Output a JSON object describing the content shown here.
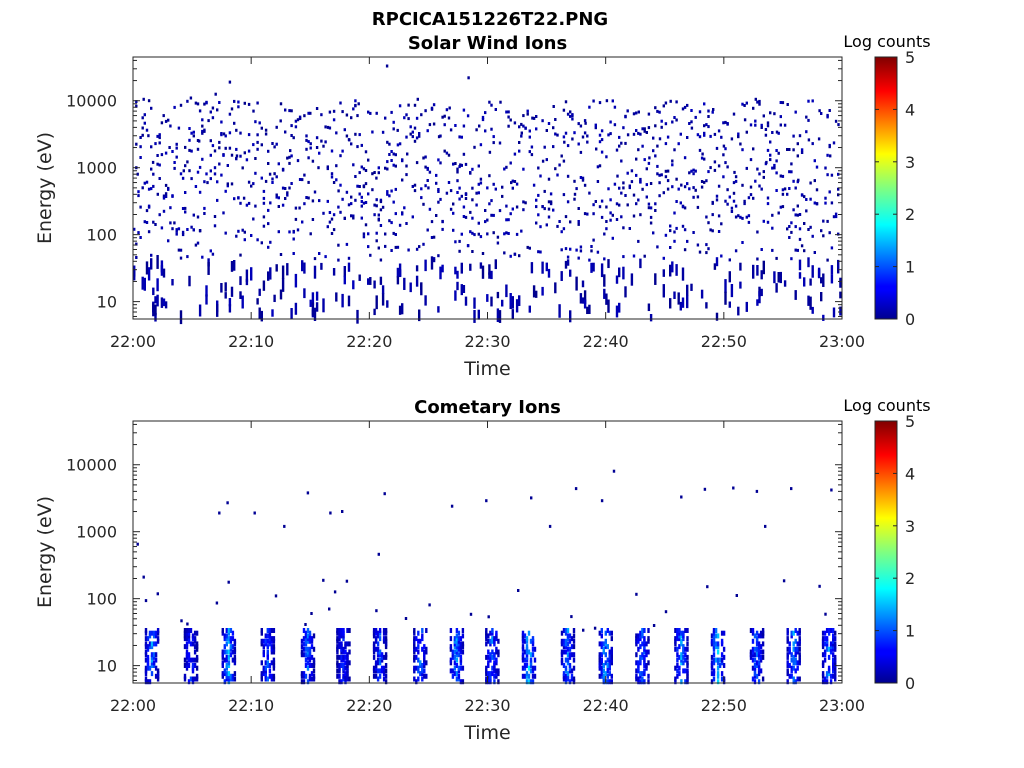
{
  "figure_title": "RPCICA151226T22.PNG",
  "chart_data": [
    {
      "type": "heatmap",
      "title": "Solar Wind Ions",
      "xlabel": "Time",
      "ylabel": "Energy (eV)",
      "x_ticks": [
        "22:00",
        "22:10",
        "22:20",
        "22:30",
        "22:40",
        "22:50",
        "23:00"
      ],
      "x_range_minutes": [
        0,
        60
      ],
      "y_scale": "log",
      "y_ticks": [
        10,
        100,
        1000,
        10000
      ],
      "y_tick_labels": [
        "10",
        "100",
        "1000",
        "10000"
      ],
      "y_range": [
        5.5,
        45000
      ],
      "colorbar": {
        "label": "Log counts",
        "range": [
          0,
          5
        ],
        "ticks": [
          "0",
          "1",
          "2",
          "3",
          "4",
          "5"
        ],
        "colormap": "jet"
      },
      "grid": false,
      "description_of_values": "Sparse single-count (log counts ≈ 0) detections scattered across 6 eV – 30 keV over the full hour; densest between ~100 eV and ~10 keV",
      "approx_points_minutes_energy_logcounts": [
        [
          0.3,
          800,
          0
        ],
        [
          0.8,
          10500,
          0
        ],
        [
          1.2,
          3000,
          0
        ],
        [
          1.6,
          1200,
          0
        ],
        [
          2.0,
          400,
          0
        ],
        [
          2.5,
          6000,
          0
        ],
        [
          3.0,
          2000,
          0
        ],
        [
          3.4,
          150,
          0
        ],
        [
          4.2,
          900,
          0
        ],
        [
          4.8,
          11000,
          0
        ],
        [
          5.5,
          2500,
          0
        ],
        [
          6.2,
          600,
          0
        ],
        [
          6.9,
          12500,
          0
        ],
        [
          7.6,
          3200,
          0
        ],
        [
          8.1,
          19000,
          0
        ],
        [
          8.7,
          1500,
          0
        ],
        [
          9.3,
          350,
          0
        ],
        [
          10.1,
          7000,
          0
        ],
        [
          10.8,
          2200,
          0
        ],
        [
          11.5,
          800,
          0
        ],
        [
          12.4,
          5000,
          0
        ],
        [
          13.2,
          1800,
          0
        ],
        [
          14.0,
          250,
          0
        ],
        [
          14.9,
          6500,
          0
        ],
        [
          15.6,
          1000,
          0
        ],
        [
          16.4,
          4000,
          0
        ],
        [
          17.3,
          450,
          0
        ],
        [
          18.2,
          2600,
          0
        ],
        [
          19.0,
          9000,
          0
        ],
        [
          19.8,
          1300,
          0
        ],
        [
          20.5,
          700,
          0
        ],
        [
          21.4,
          33000,
          0
        ],
        [
          22.3,
          3600,
          0
        ],
        [
          23.1,
          1600,
          0
        ],
        [
          24.0,
          10500,
          0
        ],
        [
          24.9,
          500,
          0
        ],
        [
          25.8,
          2900,
          0
        ],
        [
          26.7,
          7800,
          0
        ],
        [
          27.6,
          1100,
          0
        ],
        [
          28.3,
          22000,
          0
        ],
        [
          29.2,
          4200,
          0
        ],
        [
          30.1,
          1700,
          0
        ],
        [
          31.0,
          9500,
          0
        ],
        [
          31.9,
          600,
          0
        ],
        [
          32.8,
          3300,
          0
        ],
        [
          33.7,
          5500,
          0
        ],
        [
          34.6,
          1250,
          0
        ],
        [
          35.5,
          8200,
          0
        ],
        [
          36.4,
          2400,
          0
        ],
        [
          37.3,
          400,
          0
        ],
        [
          38.2,
          4600,
          0
        ],
        [
          39.1,
          1900,
          0
        ],
        [
          40.0,
          10000,
          0
        ],
        [
          40.9,
          750,
          0
        ],
        [
          41.8,
          3100,
          0
        ],
        [
          42.7,
          6800,
          0
        ],
        [
          43.6,
          1400,
          0
        ],
        [
          44.5,
          2700,
          0
        ],
        [
          45.4,
          9800,
          0
        ],
        [
          46.3,
          550,
          0
        ],
        [
          47.2,
          3900,
          0
        ],
        [
          48.1,
          1600,
          0
        ],
        [
          49.0,
          7400,
          0
        ],
        [
          49.9,
          2100,
          0
        ],
        [
          50.8,
          850,
          0
        ],
        [
          51.7,
          5200,
          0
        ],
        [
          52.6,
          10500,
          0
        ],
        [
          53.5,
          1200,
          0
        ],
        [
          54.4,
          3400,
          0
        ],
        [
          55.3,
          8800,
          0
        ],
        [
          56.2,
          650,
          0
        ],
        [
          57.1,
          2600,
          0
        ],
        [
          58.0,
          7100,
          0
        ],
        [
          58.9,
          1500,
          0
        ],
        [
          59.6,
          4400,
          0
        ]
      ]
    },
    {
      "type": "heatmap",
      "title": "Cometary Ions",
      "xlabel": "Time",
      "ylabel": "Energy (eV)",
      "x_ticks": [
        "22:00",
        "22:10",
        "22:20",
        "22:30",
        "22:40",
        "22:50",
        "23:00"
      ],
      "x_range_minutes": [
        0,
        60
      ],
      "y_scale": "log",
      "y_ticks": [
        10,
        100,
        1000,
        10000
      ],
      "y_tick_labels": [
        "10",
        "100",
        "1000",
        "10000"
      ],
      "y_range": [
        5.5,
        45000
      ],
      "colorbar": {
        "label": "Log counts",
        "range": [
          0,
          5
        ],
        "ticks": [
          "0",
          "1",
          "2",
          "3",
          "4",
          "5"
        ],
        "colormap": "jet"
      },
      "grid": false,
      "description_of_values": "Quasi-periodic bursts below ~40 eV reaching log counts ≈ 1.5–2 roughly every 2–3 minutes; sparse single counts up to ~8 keV",
      "bursts_minutes": [
        1.5,
        4.8,
        8.0,
        11.3,
        14.7,
        17.7,
        20.8,
        24.2,
        27.3,
        30.3,
        33.4,
        36.7,
        39.9,
        43.0,
        46.3,
        49.4,
        52.7,
        55.8,
        58.8
      ],
      "burst_peak_logcounts": [
        1.6,
        1.1,
        1.7,
        1.3,
        1.4,
        1.0,
        1.2,
        1.5,
        1.7,
        1.4,
        2.0,
        1.6,
        1.8,
        1.5,
        1.7,
        1.9,
        1.4,
        1.8,
        1.6
      ],
      "approx_points_minutes_energy_logcounts": [
        [
          0.3,
          650,
          0
        ],
        [
          0.8,
          210,
          0
        ],
        [
          7.2,
          1900,
          0
        ],
        [
          7.9,
          2700,
          0
        ],
        [
          10.2,
          1900,
          0
        ],
        [
          12.7,
          1200,
          0
        ],
        [
          14.7,
          3800,
          0
        ],
        [
          16.6,
          1900,
          0
        ],
        [
          17.6,
          2000,
          0
        ],
        [
          20.7,
          460,
          0
        ],
        [
          21.2,
          3700,
          0
        ],
        [
          26.9,
          2400,
          0
        ],
        [
          29.8,
          2900,
          0
        ],
        [
          33.6,
          3200,
          0
        ],
        [
          35.2,
          1200,
          0
        ],
        [
          37.4,
          4400,
          0
        ],
        [
          39.6,
          2900,
          0
        ],
        [
          40.6,
          8000,
          0
        ],
        [
          46.3,
          3300,
          0
        ],
        [
          48.3,
          4300,
          0
        ],
        [
          50.7,
          4500,
          0
        ],
        [
          52.7,
          4000,
          0
        ],
        [
          53.4,
          1200,
          0
        ],
        [
          55.6,
          4400,
          0
        ],
        [
          59.0,
          4200,
          0
        ]
      ]
    }
  ]
}
